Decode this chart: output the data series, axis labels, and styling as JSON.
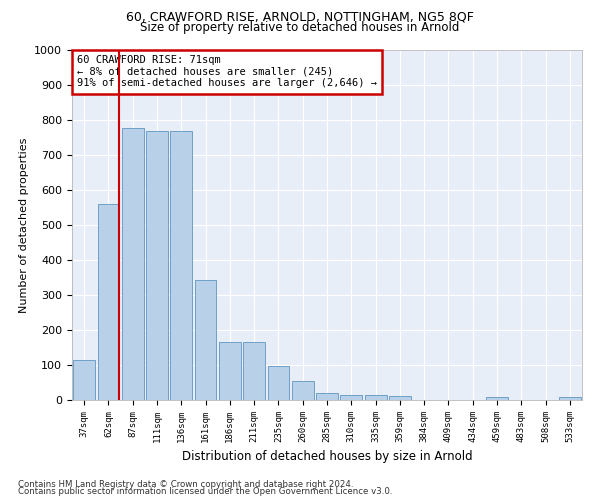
{
  "title1": "60, CRAWFORD RISE, ARNOLD, NOTTINGHAM, NG5 8QF",
  "title2": "Size of property relative to detached houses in Arnold",
  "xlabel": "Distribution of detached houses by size in Arnold",
  "ylabel": "Number of detached properties",
  "categories": [
    "37sqm",
    "62sqm",
    "87sqm",
    "111sqm",
    "136sqm",
    "161sqm",
    "186sqm",
    "211sqm",
    "235sqm",
    "260sqm",
    "285sqm",
    "310sqm",
    "335sqm",
    "359sqm",
    "384sqm",
    "409sqm",
    "434sqm",
    "459sqm",
    "483sqm",
    "508sqm",
    "533sqm"
  ],
  "values": [
    113,
    560,
    778,
    770,
    770,
    343,
    165,
    165,
    98,
    53,
    20,
    15,
    15,
    12,
    0,
    0,
    0,
    10,
    0,
    0,
    10
  ],
  "bar_color": "#b8d0e8",
  "bar_edge_color": "#6fa0c8",
  "vline_x_index": 1,
  "vline_color": "#cc0000",
  "annotation_text": "60 CRAWFORD RISE: 71sqm\n← 8% of detached houses are smaller (245)\n91% of semi-detached houses are larger (2,646) →",
  "annotation_box_color": "#ffffff",
  "annotation_box_edge": "#cc0000",
  "footnote1": "Contains HM Land Registry data © Crown copyright and database right 2024.",
  "footnote2": "Contains public sector information licensed under the Open Government Licence v3.0.",
  "ylim": [
    0,
    1000
  ],
  "yticks": [
    0,
    100,
    200,
    300,
    400,
    500,
    600,
    700,
    800,
    900,
    1000
  ],
  "bg_color": "#e8eef8",
  "fig_bg_color": "#ffffff",
  "title1_fontsize": 9,
  "title2_fontsize": 8.5
}
